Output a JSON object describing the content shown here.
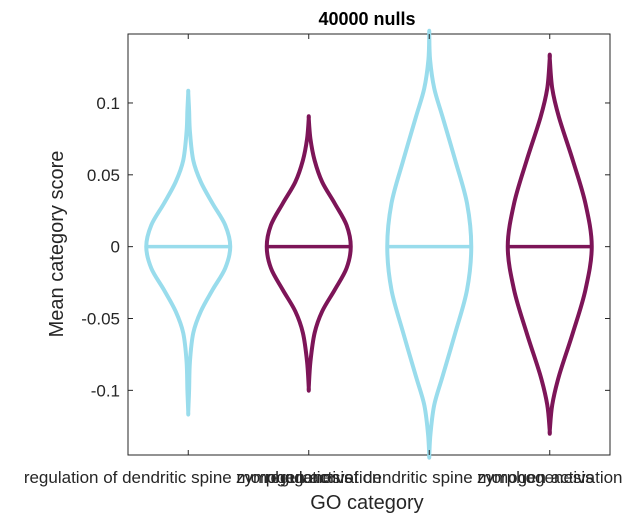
{
  "chart_data": {
    "type": "violin",
    "title": "40000 nulls",
    "xlabel": "GO category",
    "ylabel": "Mean category score",
    "ylim": [
      -0.145,
      0.148
    ],
    "yticks": [
      -0.1,
      -0.05,
      0,
      0.05,
      0.1
    ],
    "ytick_labels": [
      "-0.1",
      "-0.05",
      "0",
      "0.05",
      "0.1"
    ],
    "categories": [
      "regulation of dendritic spine morphogenesis",
      "zymogen activation",
      "regulation of dendritic spine morphogenesis",
      "zymogen activation"
    ],
    "grid": false,
    "violins": [
      {
        "category_index": 0,
        "color": "#99DCEC",
        "median": 0,
        "min": -0.115,
        "max": 0.107,
        "profile": [
          [
            -0.115,
            0.0
          ],
          [
            -0.1,
            0.02
          ],
          [
            -0.08,
            0.04
          ],
          [
            -0.06,
            0.12
          ],
          [
            -0.045,
            0.3
          ],
          [
            -0.03,
            0.58
          ],
          [
            -0.015,
            0.88
          ],
          [
            0.0,
            1.0
          ],
          [
            0.015,
            0.88
          ],
          [
            0.03,
            0.58
          ],
          [
            0.045,
            0.3
          ],
          [
            0.06,
            0.12
          ],
          [
            0.08,
            0.04
          ],
          [
            0.095,
            0.02
          ],
          [
            0.107,
            0.0
          ]
        ]
      },
      {
        "category_index": 1,
        "color": "#7D1558",
        "median": 0,
        "min": -0.098,
        "max": 0.089,
        "profile": [
          [
            -0.098,
            0.0
          ],
          [
            -0.08,
            0.04
          ],
          [
            -0.06,
            0.14
          ],
          [
            -0.045,
            0.32
          ],
          [
            -0.03,
            0.62
          ],
          [
            -0.015,
            0.9
          ],
          [
            0.0,
            1.0
          ],
          [
            0.015,
            0.9
          ],
          [
            0.03,
            0.62
          ],
          [
            0.045,
            0.32
          ],
          [
            0.06,
            0.14
          ],
          [
            0.075,
            0.04
          ],
          [
            0.089,
            0.0
          ]
        ]
      },
      {
        "category_index": 2,
        "color": "#99DCEC",
        "median": 0,
        "min": -0.145,
        "max": 0.148,
        "profile": [
          [
            -0.145,
            0.0
          ],
          [
            -0.13,
            0.03
          ],
          [
            -0.11,
            0.12
          ],
          [
            -0.09,
            0.32
          ],
          [
            -0.06,
            0.62
          ],
          [
            -0.03,
            0.9
          ],
          [
            0.0,
            1.0
          ],
          [
            0.03,
            0.9
          ],
          [
            0.06,
            0.62
          ],
          [
            0.09,
            0.32
          ],
          [
            0.11,
            0.12
          ],
          [
            0.13,
            0.02
          ],
          [
            0.148,
            0.0
          ]
        ]
      },
      {
        "category_index": 3,
        "color": "#7D1558",
        "median": 0,
        "min": -0.128,
        "max": 0.131,
        "profile": [
          [
            -0.128,
            0.0
          ],
          [
            -0.11,
            0.06
          ],
          [
            -0.09,
            0.22
          ],
          [
            -0.06,
            0.55
          ],
          [
            -0.03,
            0.85
          ],
          [
            0.0,
            1.0
          ],
          [
            0.03,
            0.85
          ],
          [
            0.06,
            0.55
          ],
          [
            0.09,
            0.22
          ],
          [
            0.11,
            0.06
          ],
          [
            0.131,
            0.0
          ]
        ]
      }
    ]
  }
}
